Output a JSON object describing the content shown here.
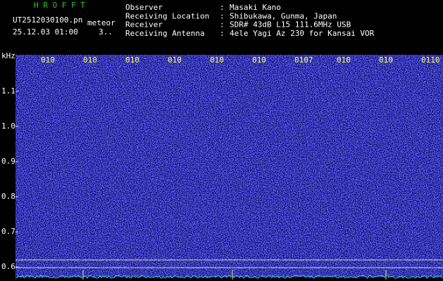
{
  "app": "H R O F F T",
  "file": "UT2512030100.pn",
  "mode": "meteor",
  "datetime": "25.12.03 01:00",
  "counter": "3..",
  "separator": ":",
  "info": [
    {
      "label": "Observer",
      "value": "Masaki Kano"
    },
    {
      "label": "Receiving Location",
      "value": "Shibukawa, Gunma, Japan"
    },
    {
      "label": "Receiver",
      "value": "SDR# 43dB L15 111.6MHz USB"
    },
    {
      "label": "Receiving Antenna",
      "value": "4ele Yagi Az 230 for Kansai VOR"
    }
  ],
  "y_unit": "kHz",
  "y_labels": [
    "1.1",
    "1.0",
    "0.9",
    "0.8",
    "0.7",
    "0.6"
  ],
  "x_labels": [
    "010",
    "010",
    "010",
    "010",
    "010",
    "010",
    "0107",
    "010",
    "010",
    "0110"
  ]
}
